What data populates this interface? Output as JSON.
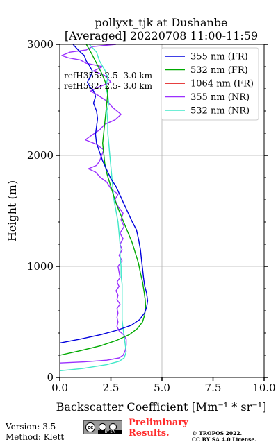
{
  "chart_data": {
    "type": "line",
    "title": "pollyxt_tjk at Dushanbe",
    "subtitle": "[Averaged] 20220708 11:00-11:59",
    "xlabel": "Backscatter Coefficient [Mm⁻¹ * sr⁻¹]",
    "ylabel": "Height (m)",
    "xlim": [
      0,
      10
    ],
    "ylim": [
      0,
      3000
    ],
    "xticks": [
      0,
      2.5,
      5,
      7.5,
      10
    ],
    "xtick_labels": [
      "0.0",
      "2.5",
      "5.0",
      "7.5",
      "10.0"
    ],
    "yticks": [
      0,
      1000,
      2000,
      3000
    ],
    "ytick_labels": [
      "0",
      "1000",
      "2000",
      "3000"
    ],
    "grid": true,
    "legend_position": "top-right",
    "annotations": [
      "refH355: 2.5- 3.0 km",
      "refH532: 2.5- 3.0 km"
    ],
    "series": [
      {
        "name": "355 nm (FR)",
        "color": "#0000dd",
        "points": [
          [
            0.0,
            310
          ],
          [
            1.0,
            345
          ],
          [
            2.0,
            385
          ],
          [
            2.8,
            425
          ],
          [
            3.5,
            470
          ],
          [
            3.9,
            520
          ],
          [
            4.15,
            580
          ],
          [
            4.25,
            630
          ],
          [
            4.3,
            690
          ],
          [
            4.25,
            760
          ],
          [
            4.15,
            830
          ],
          [
            4.1,
            900
          ],
          [
            4.05,
            980
          ],
          [
            4.0,
            1060
          ],
          [
            3.95,
            1150
          ],
          [
            3.85,
            1250
          ],
          [
            3.75,
            1330
          ],
          [
            3.55,
            1400
          ],
          [
            3.35,
            1480
          ],
          [
            3.15,
            1560
          ],
          [
            2.95,
            1640
          ],
          [
            2.75,
            1720
          ],
          [
            2.5,
            1790
          ],
          [
            2.3,
            1870
          ],
          [
            2.1,
            1950
          ],
          [
            1.95,
            2030
          ],
          [
            1.8,
            2110
          ],
          [
            1.75,
            2190
          ],
          [
            1.8,
            2260
          ],
          [
            1.85,
            2330
          ],
          [
            1.8,
            2400
          ],
          [
            1.65,
            2470
          ],
          [
            1.75,
            2530
          ],
          [
            1.7,
            2570
          ],
          [
            1.5,
            2610
          ],
          [
            1.35,
            2660
          ],
          [
            1.5,
            2710
          ],
          [
            1.6,
            2760
          ],
          [
            1.45,
            2810
          ],
          [
            1.3,
            2850
          ],
          [
            1.2,
            2900
          ],
          [
            0.95,
            2940
          ],
          [
            0.65,
            3000
          ]
        ]
      },
      {
        "name": "532 nm (FR)",
        "color": "#00aa00",
        "points": [
          [
            0.0,
            200
          ],
          [
            1.0,
            240
          ],
          [
            2.0,
            285
          ],
          [
            2.8,
            335
          ],
          [
            3.4,
            385
          ],
          [
            3.8,
            440
          ],
          [
            4.05,
            500
          ],
          [
            4.15,
            560
          ],
          [
            4.2,
            630
          ],
          [
            4.18,
            700
          ],
          [
            4.12,
            780
          ],
          [
            4.05,
            860
          ],
          [
            3.95,
            940
          ],
          [
            3.85,
            1030
          ],
          [
            3.7,
            1120
          ],
          [
            3.55,
            1210
          ],
          [
            3.35,
            1300
          ],
          [
            3.15,
            1390
          ],
          [
            2.95,
            1480
          ],
          [
            2.75,
            1570
          ],
          [
            2.6,
            1660
          ],
          [
            2.45,
            1750
          ],
          [
            2.3,
            1840
          ],
          [
            2.2,
            1930
          ],
          [
            2.15,
            2020
          ],
          [
            2.1,
            2110
          ],
          [
            2.15,
            2200
          ],
          [
            2.2,
            2290
          ],
          [
            2.25,
            2380
          ],
          [
            2.3,
            2470
          ],
          [
            2.35,
            2560
          ],
          [
            2.25,
            2650
          ],
          [
            2.05,
            2740
          ],
          [
            1.8,
            2830
          ],
          [
            1.55,
            2920
          ],
          [
            1.3,
            3000
          ]
        ]
      },
      {
        "name": "1064 nm (FR)",
        "color": "#dd0000",
        "points": []
      },
      {
        "name": "355 nm (NR)",
        "color": "#9b30ff",
        "points": [
          [
            0.0,
            130
          ],
          [
            1.2,
            140
          ],
          [
            2.3,
            155
          ],
          [
            2.9,
            175
          ],
          [
            3.1,
            200
          ],
          [
            3.2,
            240
          ],
          [
            3.25,
            290
          ],
          [
            3.25,
            340
          ],
          [
            3.15,
            380
          ],
          [
            2.9,
            420
          ],
          [
            2.8,
            460
          ],
          [
            2.85,
            500
          ],
          [
            2.8,
            540
          ],
          [
            2.85,
            580
          ],
          [
            2.8,
            620
          ],
          [
            2.95,
            660
          ],
          [
            2.8,
            700
          ],
          [
            2.85,
            740
          ],
          [
            2.75,
            780
          ],
          [
            2.9,
            820
          ],
          [
            2.8,
            860
          ],
          [
            2.95,
            900
          ],
          [
            2.9,
            950
          ],
          [
            2.85,
            1000
          ],
          [
            3.05,
            1050
          ],
          [
            2.9,
            1100
          ],
          [
            3.05,
            1150
          ],
          [
            2.95,
            1200
          ],
          [
            3.1,
            1250
          ],
          [
            2.95,
            1300
          ],
          [
            3.15,
            1360
          ],
          [
            3.0,
            1420
          ],
          [
            3.1,
            1480
          ],
          [
            2.85,
            1540
          ],
          [
            2.7,
            1600
          ],
          [
            2.85,
            1650
          ],
          [
            2.5,
            1700
          ],
          [
            2.3,
            1760
          ],
          [
            2.0,
            1800
          ],
          [
            1.75,
            1850
          ],
          [
            1.4,
            1880
          ],
          [
            1.8,
            1910
          ],
          [
            1.95,
            1950
          ],
          [
            2.05,
            2000
          ],
          [
            2.15,
            2050
          ],
          [
            1.8,
            2100
          ],
          [
            1.25,
            2140
          ],
          [
            1.55,
            2180
          ],
          [
            1.95,
            2230
          ],
          [
            2.2,
            2280
          ],
          [
            2.7,
            2320
          ],
          [
            3.0,
            2370
          ],
          [
            2.6,
            2430
          ],
          [
            2.3,
            2490
          ],
          [
            1.8,
            2550
          ],
          [
            1.5,
            2580
          ],
          [
            1.95,
            2620
          ],
          [
            2.5,
            2660
          ],
          [
            2.2,
            2720
          ],
          [
            1.65,
            2760
          ],
          [
            2.1,
            2800
          ],
          [
            1.3,
            2830
          ],
          [
            1.0,
            2860
          ],
          [
            0.4,
            2880
          ],
          [
            0.1,
            2900
          ],
          [
            0.5,
            2930
          ],
          [
            1.3,
            2950
          ],
          [
            1.6,
            2980
          ],
          [
            2.75,
            3000
          ]
        ]
      },
      {
        "name": "532 nm (NR)",
        "color": "#40e8c8",
        "points": [
          [
            0.0,
            60
          ],
          [
            1.1,
            80
          ],
          [
            2.3,
            115
          ],
          [
            2.9,
            145
          ],
          [
            3.15,
            175
          ],
          [
            3.25,
            230
          ],
          [
            3.2,
            300
          ],
          [
            3.15,
            370
          ],
          [
            3.1,
            440
          ],
          [
            3.05,
            520
          ],
          [
            3.05,
            600
          ],
          [
            3.05,
            680
          ],
          [
            3.05,
            760
          ],
          [
            3.05,
            840
          ],
          [
            3.0,
            920
          ],
          [
            3.0,
            1000
          ],
          [
            2.95,
            1100
          ],
          [
            2.95,
            1200
          ],
          [
            2.9,
            1300
          ],
          [
            2.85,
            1400
          ],
          [
            2.75,
            1500
          ],
          [
            2.65,
            1600
          ],
          [
            2.6,
            1700
          ],
          [
            2.55,
            1800
          ],
          [
            2.5,
            1900
          ],
          [
            2.45,
            2000
          ],
          [
            2.4,
            2100
          ],
          [
            2.35,
            2200
          ],
          [
            2.35,
            2300
          ],
          [
            2.3,
            2400
          ],
          [
            2.4,
            2470
          ],
          [
            2.35,
            2540
          ],
          [
            2.25,
            2620
          ],
          [
            2.35,
            2700
          ],
          [
            2.2,
            2770
          ],
          [
            1.95,
            2850
          ],
          [
            1.8,
            2930
          ],
          [
            1.45,
            3000
          ]
        ]
      }
    ]
  },
  "footer": {
    "version": "Version: 3.5",
    "method": "Method: Klett",
    "license_badge": "BY SA",
    "preliminary": "Preliminary",
    "results": "Results.",
    "copyright": "© TROPOS 2022.",
    "license": "CC BY SA 4.0 License."
  }
}
